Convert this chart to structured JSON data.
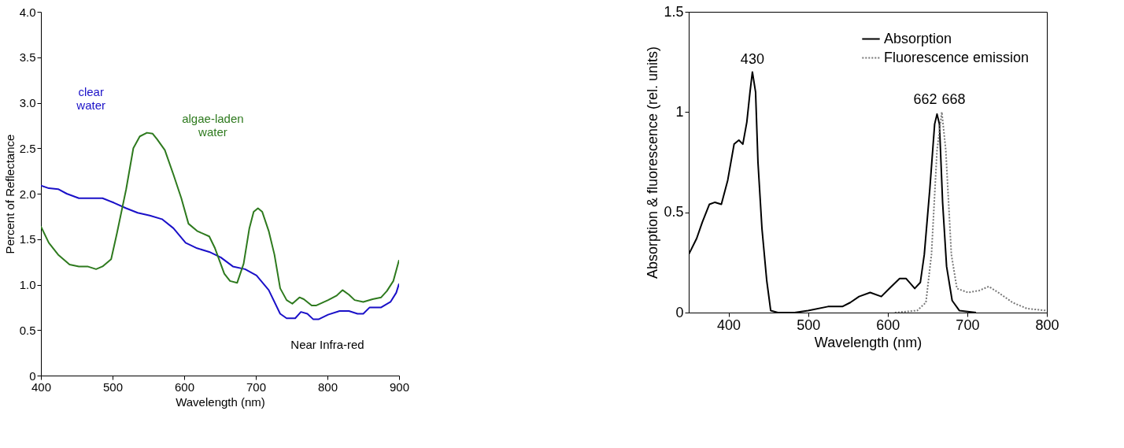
{
  "chart_data": [
    {
      "type": "line",
      "xlabel": "Wavelength (nm)",
      "ylabel": "Percent of Reflectance",
      "xlim": [
        400,
        900
      ],
      "xticks": [
        400,
        500,
        600,
        700,
        800,
        900
      ],
      "ylim": [
        0,
        4
      ],
      "yticks": [
        {
          "value": 0,
          "label": "0"
        },
        {
          "value": 0.5,
          "label": "0.5"
        },
        {
          "value": 1,
          "label": "1.0"
        },
        {
          "value": 1.5,
          "label": "1.5"
        },
        {
          "value": 2,
          "label": "2.0"
        },
        {
          "value": 2.5,
          "label": "2.5"
        },
        {
          "value": 3,
          "label": "3.0"
        },
        {
          "value": 3.5,
          "label": "3.5"
        },
        {
          "value": 4,
          "label": "4.0"
        }
      ],
      "grid": false,
      "legend": false,
      "series": [
        {
          "color": "#1a10c8",
          "x": [
            400,
            411,
            424,
            436,
            453,
            469,
            486,
            502,
            519,
            535,
            552,
            569,
            585,
            602,
            618,
            635,
            651,
            668,
            685,
            701,
            718,
            734,
            743,
            755,
            763,
            772,
            780,
            788,
            801,
            817,
            830,
            842,
            850,
            859,
            875,
            888,
            896,
            900
          ],
          "values": [
            2.09,
            2.06,
            2.05,
            2.0,
            1.95,
            1.95,
            1.95,
            1.9,
            1.84,
            1.79,
            1.76,
            1.72,
            1.62,
            1.46,
            1.4,
            1.36,
            1.3,
            1.2,
            1.17,
            1.1,
            0.94,
            0.68,
            0.63,
            0.63,
            0.7,
            0.68,
            0.62,
            0.62,
            0.67,
            0.71,
            0.71,
            0.68,
            0.68,
            0.75,
            0.75,
            0.81,
            0.91,
            1.01
          ]
        },
        {
          "color": "#2e7a1e",
          "x": [
            400,
            411,
            424,
            440,
            453,
            465,
            477,
            486,
            498,
            506,
            519,
            529,
            538,
            548,
            556,
            562,
            573,
            585,
            596,
            606,
            618,
            635,
            643,
            656,
            664,
            674,
            683,
            691,
            697,
            703,
            709,
            718,
            726,
            734,
            743,
            751,
            761,
            767,
            778,
            784,
            801,
            813,
            821,
            830,
            838,
            850,
            863,
            875,
            883,
            892,
            900
          ],
          "values": [
            1.64,
            1.46,
            1.33,
            1.22,
            1.2,
            1.2,
            1.17,
            1.2,
            1.28,
            1.56,
            2.05,
            2.5,
            2.63,
            2.67,
            2.66,
            2.6,
            2.48,
            2.21,
            1.95,
            1.67,
            1.59,
            1.53,
            1.4,
            1.12,
            1.04,
            1.02,
            1.23,
            1.62,
            1.8,
            1.84,
            1.8,
            1.59,
            1.33,
            0.96,
            0.83,
            0.79,
            0.86,
            0.84,
            0.77,
            0.77,
            0.83,
            0.88,
            0.94,
            0.89,
            0.83,
            0.81,
            0.84,
            0.86,
            0.93,
            1.04,
            1.27
          ]
        }
      ],
      "annotations": [
        "clear water",
        "algae-laden water",
        "Near Infra-red"
      ]
    },
    {
      "type": "line",
      "xlabel": "Wavelength (nm)",
      "ylabel": "Absorption & fluorescence (rel. units)",
      "xlim": [
        350,
        800
      ],
      "xticks": [
        400,
        500,
        600,
        700,
        800
      ],
      "ylim": [
        0,
        1.5
      ],
      "yticks": [
        {
          "value": 0,
          "label": "0"
        },
        0.5,
        {
          "value": 1,
          "label": "1"
        },
        1.5
      ],
      "grid": false,
      "legend": "top right",
      "series": [
        {
          "name": "Absorption",
          "color": "#000000",
          "line_style": "solid",
          "x": [
            350,
            360,
            367,
            376,
            383,
            391,
            399,
            407,
            413,
            418,
            423,
            427,
            430,
            434,
            437,
            442,
            448,
            453,
            462,
            483,
            500,
            525,
            543,
            553,
            564,
            578,
            592,
            602,
            615,
            623,
            634,
            641,
            646,
            653,
            659,
            662,
            665,
            669,
            674,
            681,
            690,
            711
          ],
          "values": [
            0.29,
            0.37,
            0.45,
            0.54,
            0.55,
            0.54,
            0.66,
            0.84,
            0.86,
            0.84,
            0.95,
            1.1,
            1.2,
            1.1,
            0.75,
            0.42,
            0.16,
            0.01,
            0,
            0,
            0.01,
            0.03,
            0.03,
            0.05,
            0.08,
            0.1,
            0.08,
            0.12,
            0.17,
            0.17,
            0.12,
            0.15,
            0.29,
            0.62,
            0.94,
            0.99,
            0.94,
            0.55,
            0.23,
            0.06,
            0.01,
            0
          ]
        },
        {
          "name": "Fluorescence emission",
          "color": "#777777",
          "line_style": "dotted",
          "x": [
            609,
            637,
            648,
            655,
            662,
            668,
            673,
            680,
            687,
            701,
            715,
            727,
            739,
            757,
            775,
            799
          ],
          "values": [
            0,
            0.01,
            0.05,
            0.29,
            0.81,
            1.0,
            0.81,
            0.29,
            0.12,
            0.1,
            0.11,
            0.13,
            0.1,
            0.05,
            0.02,
            0.01
          ]
        }
      ],
      "annotations": [
        {
          "text": "430",
          "x": 430,
          "y": 1.2
        },
        {
          "text": "662",
          "x": 662,
          "y": 1.0
        },
        {
          "text": "668",
          "x": 668,
          "y": 1.0
        }
      ]
    }
  ]
}
